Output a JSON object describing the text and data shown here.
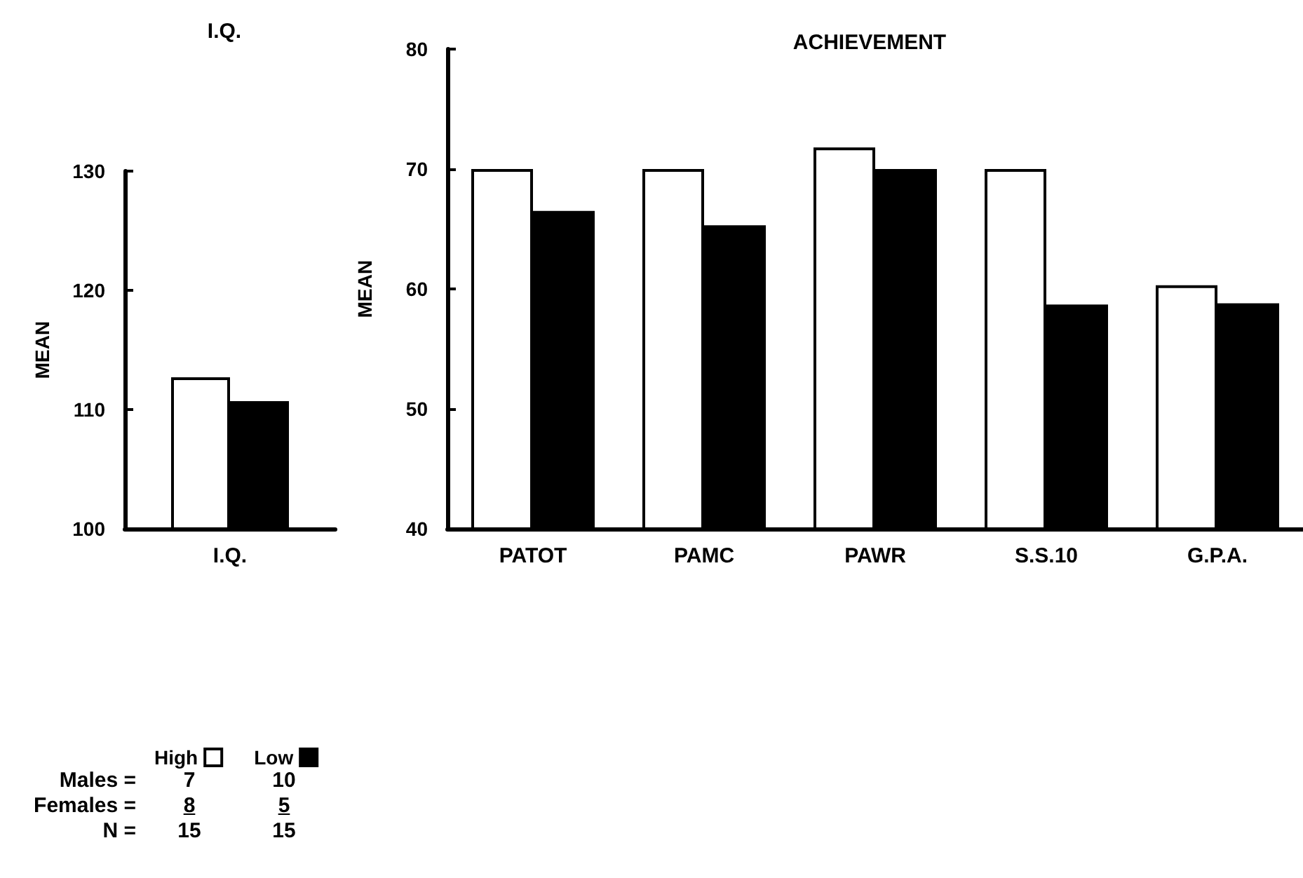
{
  "chart_data": [
    {
      "type": "bar",
      "title": "I.Q.",
      "ylabel": "MEAN",
      "categories": [
        "I.Q."
      ],
      "series": [
        {
          "name": "High",
          "color": "#ffffff",
          "values": [
            112.7
          ]
        },
        {
          "name": "Low",
          "color": "#000000",
          "values": [
            110.7
          ]
        }
      ],
      "ylim": [
        100,
        130
      ],
      "yticks": [
        100,
        110,
        120,
        130
      ],
      "grid": false,
      "legend": "bottom left",
      "annotations": [
        "Males =",
        "7",
        "10",
        "Females =",
        "8",
        "5",
        "N =",
        "15",
        "15"
      ]
    },
    {
      "type": "bar",
      "title": "ACHIEVEMENT",
      "ylabel": "MEAN",
      "categories": [
        "PATOT",
        "PAMC",
        "PAWR",
        "S.S.10",
        "G.P.A."
      ],
      "series": [
        {
          "color": "#ffffff",
          "values": [
            70,
            70,
            71.8,
            70,
            60.3
          ]
        },
        {
          "color": "#000000",
          "values": [
            66.5,
            65.3,
            70,
            58.7,
            58.8
          ]
        }
      ],
      "ylim": [
        40,
        80
      ],
      "yticks": [
        40,
        50,
        60,
        70,
        80
      ],
      "grid": false
    }
  ]
}
